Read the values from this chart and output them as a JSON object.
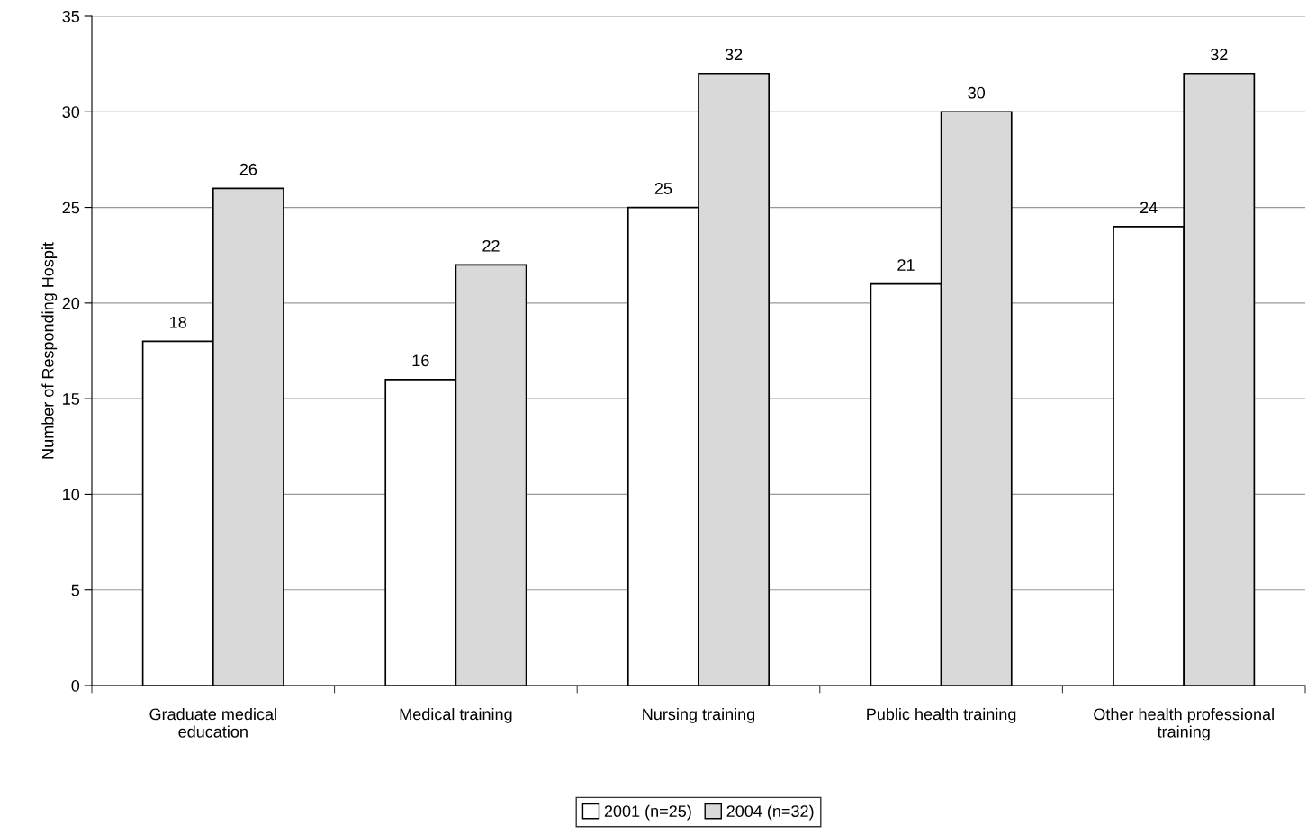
{
  "chart_data": {
    "type": "bar",
    "ylabel": "Number of Responding Hospit",
    "categories": [
      "Graduate medical\neducation",
      "Medical training",
      "Nursing training",
      "Public health training",
      "Other health professional\ntraining"
    ],
    "series": [
      {
        "name": "2001 (n=25)",
        "color": "#ffffff",
        "values": [
          18,
          16,
          25,
          21,
          24
        ]
      },
      {
        "name": "2004 (n=32)",
        "color": "#d9d9d9",
        "values": [
          26,
          22,
          32,
          30,
          32
        ]
      }
    ],
    "ylim": [
      0,
      35
    ],
    "yticks": [
      0,
      5,
      10,
      15,
      20,
      25,
      30,
      35
    ],
    "grid": "y",
    "legend": "bottom",
    "data_labels": true
  }
}
